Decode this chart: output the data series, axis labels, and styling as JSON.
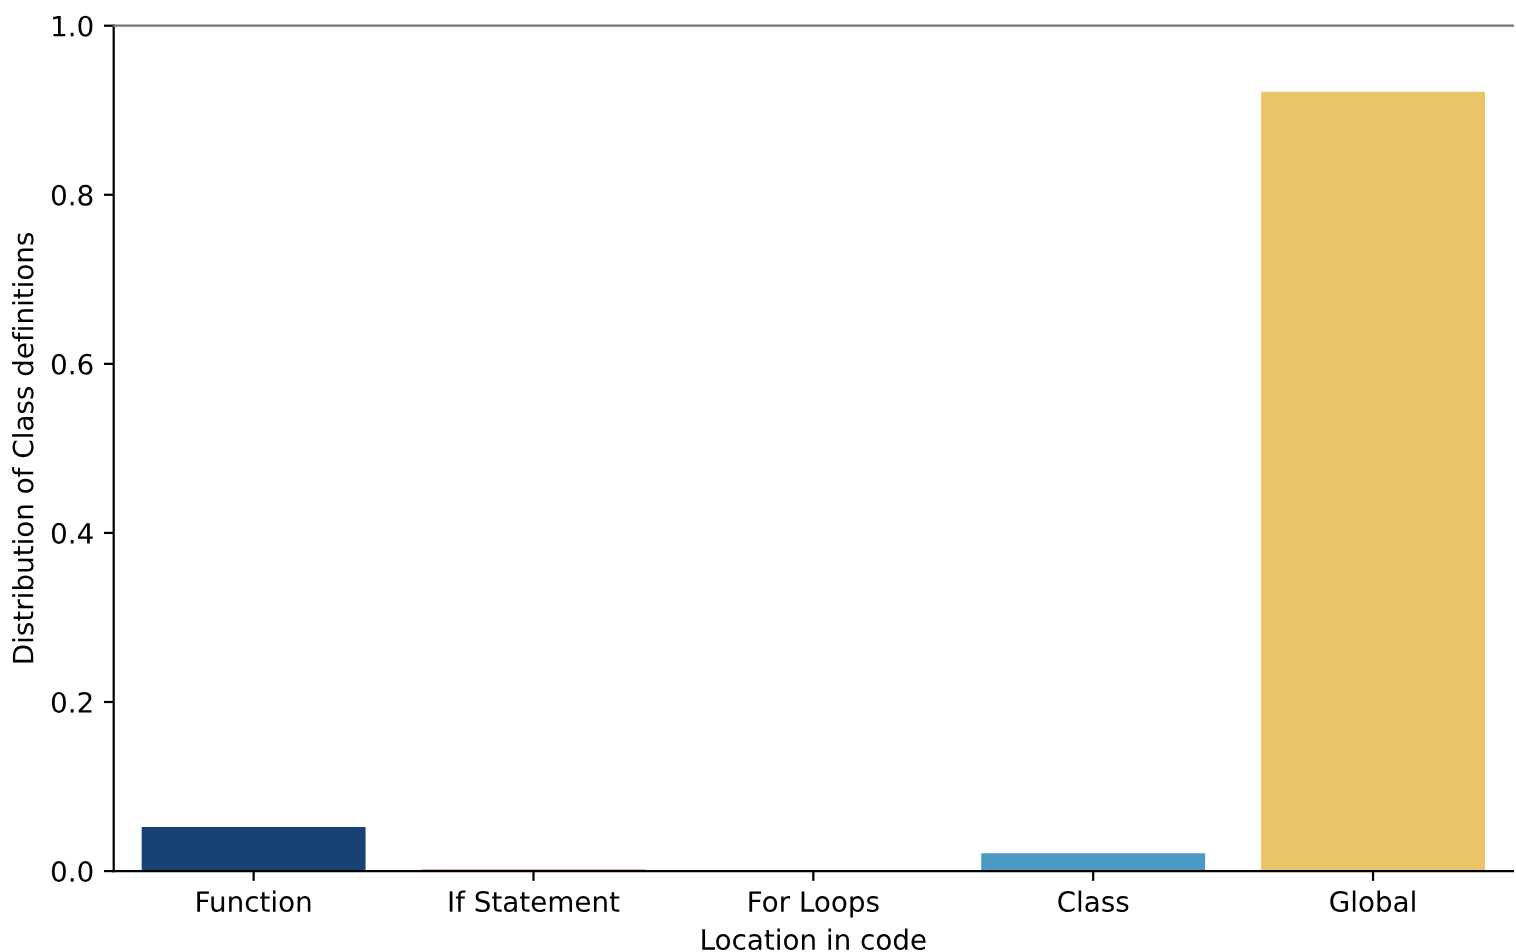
{
  "chart_data": {
    "type": "bar",
    "xlabel": "Location in code",
    "ylabel": "Distribution of Class definitions",
    "categories": [
      "Function",
      "If Statement",
      "For Loops",
      "Class",
      "Global"
    ],
    "values": [
      0.052,
      0.002,
      0,
      0.021,
      0.922
    ],
    "colors": [
      "#174273",
      "#d1495b",
      "#66a182",
      "#4a9ac4",
      "#e9c46a"
    ],
    "ylim": [
      0,
      1.0
    ],
    "yticks": [
      {
        "value": 0,
        "label": "0.0"
      },
      {
        "value": 0.2,
        "label": "0.2"
      },
      {
        "value": 0.4,
        "label": "0.4"
      },
      {
        "value": 0.6,
        "label": "0.6"
      },
      {
        "value": 0.8,
        "label": "0.8"
      },
      {
        "value": 1.0,
        "label": "1.0"
      }
    ],
    "grid": false
  }
}
